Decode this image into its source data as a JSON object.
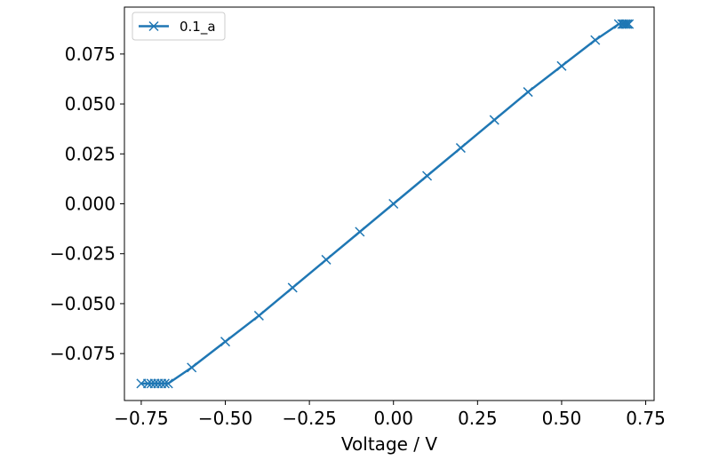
{
  "chart_data": {
    "type": "line",
    "title": "",
    "xlabel": "Voltage / V",
    "ylabel": "",
    "xlim": [
      -0.8,
      0.775
    ],
    "ylim": [
      -0.0985,
      0.0985
    ],
    "x_ticks": [
      -0.75,
      -0.5,
      -0.25,
      0.0,
      0.25,
      0.5,
      0.75
    ],
    "x_tick_labels": [
      "−0.75",
      "−0.50",
      "−0.25",
      "0.00",
      "0.25",
      "0.50",
      "0.75"
    ],
    "y_ticks": [
      -0.075,
      -0.05,
      -0.025,
      0.0,
      0.025,
      0.05,
      0.075
    ],
    "y_tick_labels": [
      "−0.075",
      "−0.050",
      "−0.025",
      "0.000",
      "0.025",
      "0.050",
      "0.075"
    ],
    "grid": false,
    "legend_position": "top-left",
    "series": [
      {
        "name": "0.1_a",
        "color": "#1f77b4",
        "marker": "x",
        "points": [
          [
            -0.75,
            -0.09
          ],
          [
            -0.73,
            -0.09
          ],
          [
            -0.72,
            -0.09
          ],
          [
            -0.71,
            -0.09
          ],
          [
            -0.7,
            -0.09
          ],
          [
            -0.69,
            -0.09
          ],
          [
            -0.68,
            -0.09
          ],
          [
            -0.67,
            -0.09
          ],
          [
            -0.6,
            -0.082
          ],
          [
            -0.5,
            -0.069
          ],
          [
            -0.4,
            -0.056
          ],
          [
            -0.3,
            -0.042
          ],
          [
            -0.2,
            -0.028
          ],
          [
            -0.1,
            -0.014
          ],
          [
            0.0,
            0.0
          ],
          [
            0.1,
            0.014
          ],
          [
            0.2,
            0.028
          ],
          [
            0.3,
            0.042
          ],
          [
            0.4,
            0.056
          ],
          [
            0.5,
            0.069
          ],
          [
            0.6,
            0.082
          ],
          [
            0.67,
            0.09
          ],
          [
            0.68,
            0.09
          ],
          [
            0.685,
            0.09
          ],
          [
            0.69,
            0.09
          ],
          [
            0.695,
            0.09
          ],
          [
            0.7,
            0.09
          ]
        ]
      }
    ]
  }
}
